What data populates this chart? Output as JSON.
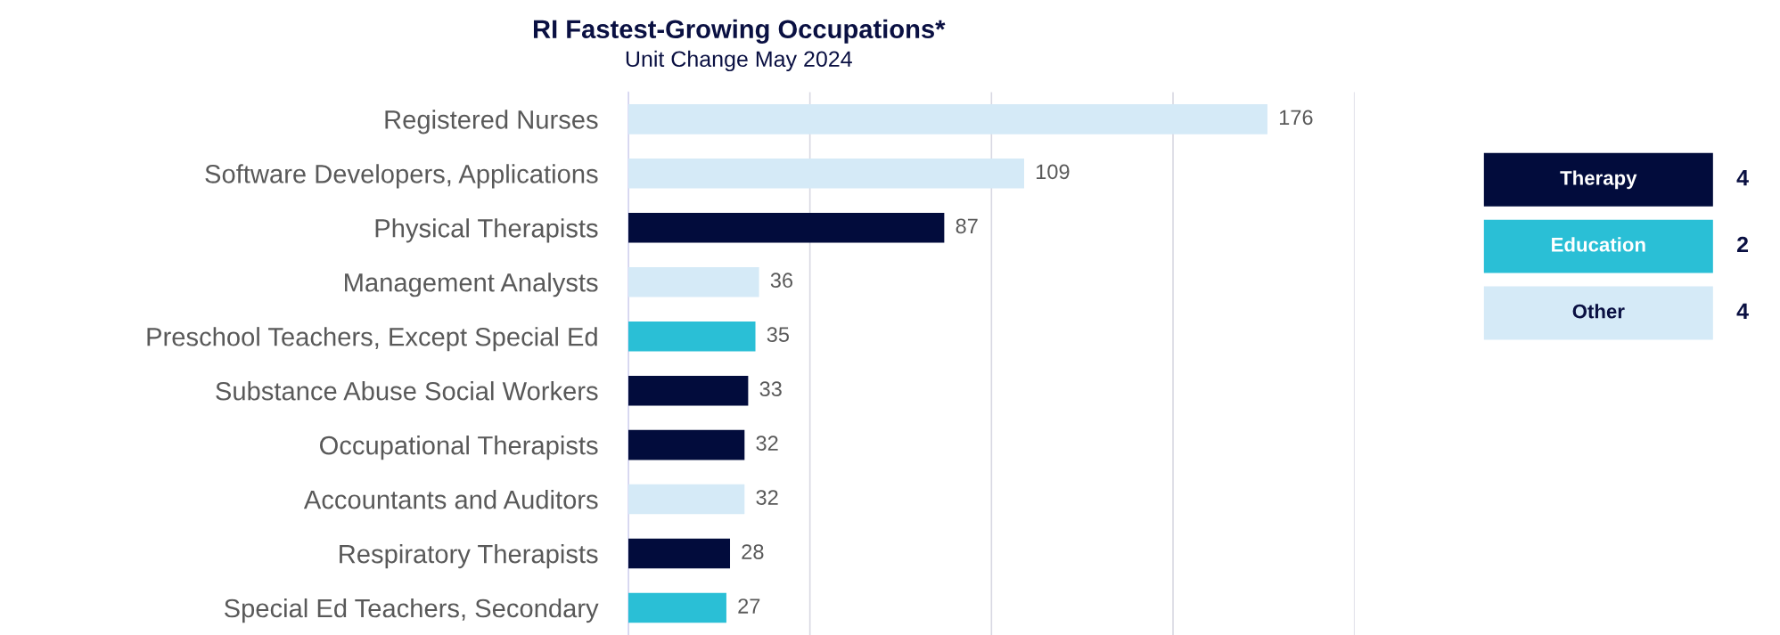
{
  "chart_data": {
    "type": "bar",
    "orientation": "horizontal",
    "title": "RI Fastest-Growing Occupations*",
    "subtitle": "Unit Change May 2024",
    "categories": [
      "Registered Nurses",
      "Software Developers, Applications",
      "Physical Therapists",
      "Management Analysts",
      "Preschool Teachers, Except Special Ed",
      "Substance Abuse Social Workers",
      "Occupational Therapists",
      "Accountants and Auditors",
      "Respiratory Therapists",
      "Special Ed Teachers, Secondary"
    ],
    "series": [
      {
        "name": "Therapy",
        "color": "#020c3c",
        "values": [
          null,
          null,
          87,
          null,
          null,
          33,
          32,
          null,
          28,
          null
        ]
      },
      {
        "name": "Education",
        "color": "#2abfd6",
        "values": [
          null,
          null,
          null,
          null,
          35,
          null,
          null,
          null,
          null,
          27
        ]
      },
      {
        "name": "Other",
        "color": "#d5eaf7",
        "values": [
          176,
          109,
          null,
          36,
          null,
          null,
          null,
          32,
          null,
          null
        ]
      }
    ],
    "annotations": [
      "4",
      "2",
      "4"
    ],
    "data_labels": true,
    "legend": "right",
    "grid": "x",
    "tick_labels": "y",
    "xlim": [
      0,
      200
    ],
    "xticks": [
      {
        "value": 0,
        "label": null
      },
      {
        "value": 50,
        "label": null
      },
      {
        "value": 100,
        "label": null
      },
      {
        "value": 150,
        "label": null
      },
      {
        "value": 200,
        "label": null
      }
    ]
  }
}
